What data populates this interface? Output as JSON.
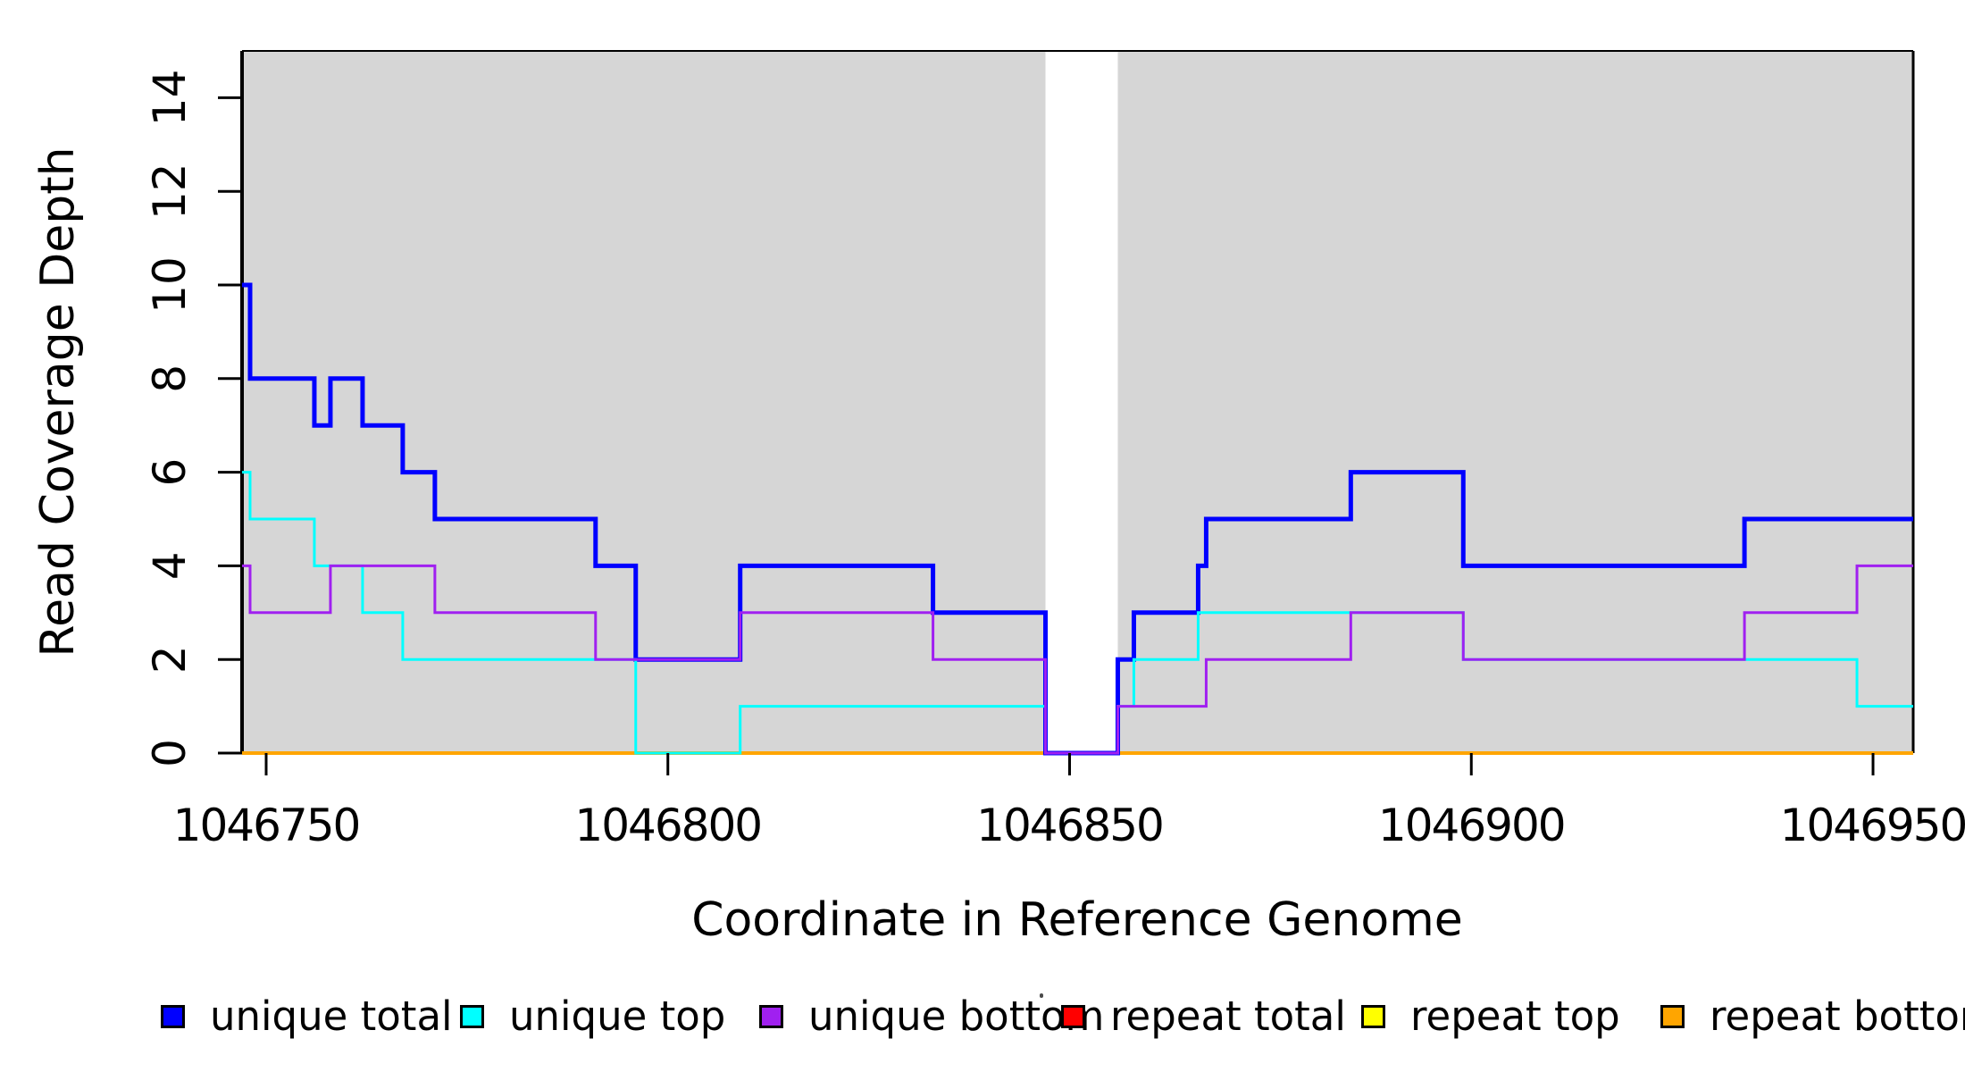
{
  "figure": {
    "background": "#ffffff",
    "plot_bg_shade": "#d6d6d6",
    "axis_color": "#000000"
  },
  "chart_data": {
    "type": "line",
    "subtype": "step-coverage",
    "title": "",
    "xlabel": "Coordinate in Reference Genome",
    "ylabel": "Read Coverage Depth",
    "xlim": [
      1046747,
      1046955
    ],
    "ylim": [
      0,
      15
    ],
    "grid": false,
    "x_ticks": [
      1046750,
      1046800,
      1046850,
      1046900,
      1046950
    ],
    "x_tick_labels": [
      "1046750",
      "1046800",
      "1046850",
      "1046900",
      "1046950"
    ],
    "y_ticks": [
      0,
      2,
      4,
      6,
      8,
      10,
      12,
      14
    ],
    "y_tick_labels": [
      "0",
      "2",
      "4",
      "6",
      "8",
      "10",
      "12",
      "14"
    ],
    "shaded_regions": [
      {
        "from": 1046747,
        "to": 1046847,
        "color": "#d6d6d6"
      },
      {
        "from": 1046856,
        "to": 1046955,
        "color": "#d6d6d6"
      }
    ],
    "series": [
      {
        "name": "repeat total",
        "color": "#ff0000",
        "width": 3,
        "segments": [
          [
            1046747,
            1046955,
            0
          ]
        ]
      },
      {
        "name": "repeat top",
        "color": "#ffff00",
        "width": 3,
        "segments": [
          [
            1046747,
            1046955,
            0
          ]
        ]
      },
      {
        "name": "repeat bottom",
        "color": "#ffa500",
        "width": 4,
        "segments": [
          [
            1046747,
            1046955,
            0
          ]
        ]
      },
      {
        "name": "unique total",
        "color": "#0000ff",
        "width": 5,
        "segments": [
          [
            1046747,
            1046748,
            10
          ],
          [
            1046748,
            1046756,
            8
          ],
          [
            1046756,
            1046758,
            7
          ],
          [
            1046758,
            1046762,
            8
          ],
          [
            1046762,
            1046767,
            7
          ],
          [
            1046767,
            1046771,
            6
          ],
          [
            1046771,
            1046791,
            5
          ],
          [
            1046791,
            1046796,
            4
          ],
          [
            1046796,
            1046809,
            2
          ],
          [
            1046809,
            1046833,
            4
          ],
          [
            1046833,
            1046847,
            3
          ],
          [
            1046847,
            1046856,
            0
          ],
          [
            1046856,
            1046858,
            2
          ],
          [
            1046858,
            1046866,
            3
          ],
          [
            1046866,
            1046867,
            4
          ],
          [
            1046867,
            1046885,
            5
          ],
          [
            1046885,
            1046899,
            6
          ],
          [
            1046899,
            1046934,
            4
          ],
          [
            1046934,
            1046955,
            5
          ]
        ]
      },
      {
        "name": "unique top",
        "color": "#00ffff",
        "width": 3,
        "segments": [
          [
            1046747,
            1046748,
            6
          ],
          [
            1046748,
            1046756,
            5
          ],
          [
            1046756,
            1046762,
            4
          ],
          [
            1046762,
            1046767,
            3
          ],
          [
            1046767,
            1046796,
            2
          ],
          [
            1046796,
            1046809,
            0
          ],
          [
            1046809,
            1046847,
            1
          ],
          [
            1046847,
            1046856,
            0
          ],
          [
            1046856,
            1046858,
            1
          ],
          [
            1046858,
            1046866,
            2
          ],
          [
            1046866,
            1046899,
            3
          ],
          [
            1046899,
            1046948,
            2
          ],
          [
            1046948,
            1046955,
            1
          ]
        ]
      },
      {
        "name": "unique bottom",
        "color": "#a020f0",
        "width": 3,
        "segments": [
          [
            1046747,
            1046748,
            4
          ],
          [
            1046748,
            1046758,
            3
          ],
          [
            1046758,
            1046771,
            4
          ],
          [
            1046771,
            1046791,
            3
          ],
          [
            1046791,
            1046809,
            2
          ],
          [
            1046809,
            1046833,
            3
          ],
          [
            1046833,
            1046847,
            2
          ],
          [
            1046847,
            1046856,
            0
          ],
          [
            1046856,
            1046867,
            1
          ],
          [
            1046867,
            1046885,
            2
          ],
          [
            1046885,
            1046899,
            3
          ],
          [
            1046899,
            1046934,
            2
          ],
          [
            1046934,
            1046948,
            3
          ],
          [
            1046948,
            1046955,
            4
          ]
        ]
      }
    ],
    "legend": {
      "position": "bottom",
      "items": [
        {
          "label": "unique total",
          "color": "#0000ff"
        },
        {
          "label": "unique top",
          "color": "#00ffff"
        },
        {
          "label": "unique bottom",
          "color": "#a020f0"
        },
        {
          "label": "repeat total",
          "color": "#ff0000"
        },
        {
          "label": "repeat top",
          "color": "#ffff00"
        },
        {
          "label": "repeat bottom",
          "color": "#ffa500"
        }
      ]
    }
  }
}
